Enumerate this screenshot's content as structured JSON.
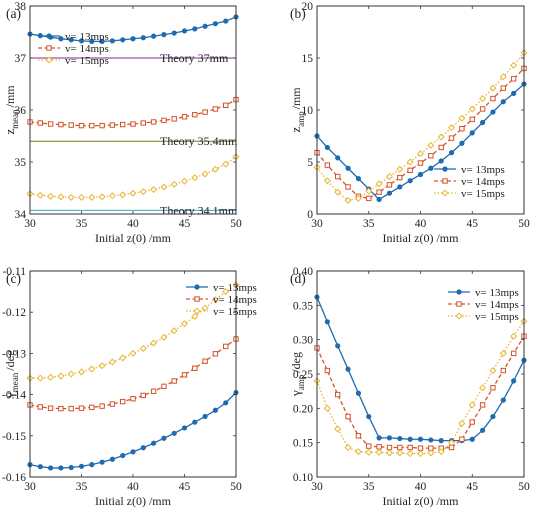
{
  "colors": {
    "v13": "#1f6bb0",
    "v14": "#d4532a",
    "v15": "#e8b530",
    "theory37": "#7b2d8e",
    "theory35_4": "#7a7a1a",
    "theory34_1": "#3aa6c0"
  },
  "chart_data": [
    {
      "type": "line",
      "panel_label": "(a)",
      "xlabel": "Initial z(0)  /mm",
      "ylabel": "z",
      "ylabel_sub": "mean",
      "ylabel_unit": "/mm",
      "xlim": [
        30,
        50
      ],
      "ylim": [
        34,
        38
      ],
      "xticks": [
        30,
        35,
        40,
        45,
        50
      ],
      "yticks": [
        34,
        35,
        36,
        37,
        38
      ],
      "legend_position": "top-left",
      "x": [
        30,
        31,
        32,
        33,
        34,
        35,
        36,
        37,
        38,
        39,
        40,
        41,
        42,
        43,
        44,
        45,
        46,
        47,
        48,
        49,
        50
      ],
      "series": [
        {
          "name": "v= 13mps",
          "marker": "dot",
          "dash": "solid",
          "color_key": "v13",
          "values": [
            37.46,
            37.43,
            37.4,
            37.37,
            37.35,
            37.33,
            37.32,
            37.32,
            37.33,
            37.35,
            37.37,
            37.39,
            37.42,
            37.45,
            37.48,
            37.52,
            37.56,
            37.61,
            37.66,
            37.71,
            37.79
          ]
        },
        {
          "name": "v= 14mps",
          "marker": "square",
          "dash": "dashed",
          "color_key": "v14",
          "values": [
            35.77,
            35.75,
            35.73,
            35.72,
            35.71,
            35.7,
            35.7,
            35.7,
            35.71,
            35.72,
            35.73,
            35.75,
            35.77,
            35.8,
            35.83,
            35.87,
            35.91,
            35.96,
            36.02,
            36.09,
            36.2
          ]
        },
        {
          "name": "v= 15mps",
          "marker": "diamond",
          "dash": "dotted",
          "color_key": "v15",
          "values": [
            34.39,
            34.36,
            34.34,
            34.33,
            34.32,
            34.32,
            34.32,
            34.33,
            34.35,
            34.37,
            34.4,
            34.43,
            34.47,
            34.52,
            34.57,
            34.63,
            34.7,
            34.77,
            34.86,
            34.96,
            35.1
          ]
        }
      ],
      "reference_lines": [
        {
          "label": "Theory 37mm",
          "y": 37.0,
          "color_key": "theory37"
        },
        {
          "label": "Theory 35.4mm",
          "y": 35.4,
          "color_key": "theory35_4"
        },
        {
          "label": "Theory 34.1mm",
          "y": 34.07,
          "color_key": "theory34_1"
        }
      ]
    },
    {
      "type": "line",
      "panel_label": "(b)",
      "xlabel": "Initial z(0)  /mm",
      "ylabel": "z",
      "ylabel_sub": "amp",
      "ylabel_unit": "/mm",
      "xlim": [
        30,
        50
      ],
      "ylim": [
        0,
        20
      ],
      "xticks": [
        30,
        35,
        40,
        45,
        50
      ],
      "yticks": [
        0,
        5,
        10,
        15,
        20
      ],
      "legend_position": "bottom-right",
      "x": [
        30,
        31,
        32,
        33,
        34,
        35,
        36,
        37,
        38,
        39,
        40,
        41,
        42,
        43,
        44,
        45,
        46,
        47,
        48,
        49,
        50
      ],
      "series": [
        {
          "name": "v= 13mps",
          "marker": "dot",
          "dash": "solid",
          "color_key": "v13",
          "values": [
            7.5,
            6.4,
            5.4,
            4.4,
            3.4,
            2.4,
            1.4,
            2.0,
            2.6,
            3.2,
            3.8,
            4.4,
            5.1,
            5.9,
            6.8,
            7.8,
            8.8,
            9.8,
            10.8,
            11.6,
            12.5
          ]
        },
        {
          "name": "v= 14mps",
          "marker": "square",
          "dash": "dashed",
          "color_key": "v14",
          "values": [
            5.9,
            4.7,
            3.6,
            2.6,
            1.7,
            1.5,
            2.1,
            2.8,
            3.5,
            4.2,
            4.9,
            5.6,
            6.4,
            7.3,
            8.2,
            9.1,
            10.1,
            11.1,
            12.1,
            13.0,
            14.0
          ]
        },
        {
          "name": "v= 15mps",
          "marker": "diamond",
          "dash": "dotted",
          "color_key": "v15",
          "values": [
            4.5,
            3.2,
            2.1,
            1.3,
            1.5,
            2.2,
            2.9,
            3.6,
            4.3,
            5.0,
            5.8,
            6.6,
            7.4,
            8.3,
            9.2,
            10.1,
            11.1,
            12.1,
            13.2,
            14.3,
            15.5
          ]
        }
      ]
    },
    {
      "type": "line",
      "panel_label": "(c)",
      "xlabel": "Initial z(0)  /mm",
      "ylabel": "γ",
      "ylabel_sub": "mean",
      "ylabel_unit": "/deg",
      "xlim": [
        30,
        50
      ],
      "ylim": [
        -0.16,
        -0.11
      ],
      "xticks": [
        30,
        35,
        40,
        45,
        50
      ],
      "yticks": [
        -0.16,
        -0.15,
        -0.14,
        -0.13,
        -0.12,
        -0.11
      ],
      "legend_position": "top-right",
      "x": [
        30,
        31,
        32,
        33,
        34,
        35,
        36,
        37,
        38,
        39,
        40,
        41,
        42,
        43,
        44,
        45,
        46,
        47,
        48,
        49,
        50
      ],
      "series": [
        {
          "name": "v= 13mps",
          "marker": "dot",
          "dash": "solid",
          "color_key": "v13",
          "values": [
            -0.157,
            -0.1575,
            -0.1578,
            -0.1578,
            -0.1577,
            -0.1574,
            -0.157,
            -0.1564,
            -0.1557,
            -0.1548,
            -0.1539,
            -0.1529,
            -0.1518,
            -0.1506,
            -0.1494,
            -0.1481,
            -0.1467,
            -0.1453,
            -0.1438,
            -0.142,
            -0.1395
          ]
        },
        {
          "name": "v= 14mps",
          "marker": "square",
          "dash": "dashed",
          "color_key": "v14",
          "values": [
            -0.1425,
            -0.143,
            -0.1433,
            -0.1434,
            -0.1434,
            -0.1433,
            -0.1431,
            -0.1428,
            -0.1423,
            -0.1417,
            -0.141,
            -0.1402,
            -0.1392,
            -0.138,
            -0.1367,
            -0.1352,
            -0.1336,
            -0.1319,
            -0.1301,
            -0.1283,
            -0.1265
          ]
        },
        {
          "name": "v= 15mps",
          "marker": "diamond",
          "dash": "dotted",
          "color_key": "v15",
          "values": [
            -0.136,
            -0.136,
            -0.1358,
            -0.1355,
            -0.135,
            -0.1345,
            -0.1338,
            -0.133,
            -0.1321,
            -0.1311,
            -0.13,
            -0.1288,
            -0.1275,
            -0.1261,
            -0.1245,
            -0.1228,
            -0.121,
            -0.119,
            -0.117,
            -0.115,
            -0.1133
          ]
        }
      ]
    },
    {
      "type": "line",
      "panel_label": "(d)",
      "xlabel": "Initial z(0)  /mm",
      "ylabel": "γ",
      "ylabel_sub": "amp",
      "ylabel_unit": "/deg",
      "xlim": [
        30,
        50
      ],
      "ylim": [
        0.1,
        0.4
      ],
      "xticks": [
        30,
        35,
        40,
        45,
        50
      ],
      "yticks": [
        0.1,
        0.15,
        0.2,
        0.25,
        0.3,
        0.35,
        0.4
      ],
      "legend_position": "top-right",
      "x": [
        30,
        31,
        32,
        33,
        34,
        35,
        36,
        37,
        38,
        39,
        40,
        41,
        42,
        43,
        44,
        45,
        46,
        47,
        48,
        49,
        50
      ],
      "series": [
        {
          "name": "v= 13mps",
          "marker": "dot",
          "dash": "solid",
          "color_key": "v13",
          "values": [
            0.362,
            0.326,
            0.291,
            0.257,
            0.222,
            0.188,
            0.157,
            0.157,
            0.156,
            0.155,
            0.155,
            0.154,
            0.153,
            0.153,
            0.153,
            0.155,
            0.168,
            0.188,
            0.212,
            0.24,
            0.27
          ]
        },
        {
          "name": "v= 14mps",
          "marker": "square",
          "dash": "dashed",
          "color_key": "v14",
          "values": [
            0.288,
            0.255,
            0.22,
            0.188,
            0.16,
            0.145,
            0.144,
            0.143,
            0.143,
            0.143,
            0.142,
            0.142,
            0.142,
            0.143,
            0.155,
            0.18,
            0.205,
            0.23,
            0.255,
            0.28,
            0.305
          ]
        },
        {
          "name": "v= 15mps",
          "marker": "diamond",
          "dash": "dotted",
          "color_key": "v15",
          "values": [
            0.24,
            0.2,
            0.17,
            0.143,
            0.137,
            0.136,
            0.136,
            0.135,
            0.135,
            0.134,
            0.134,
            0.135,
            0.137,
            0.15,
            0.178,
            0.205,
            0.23,
            0.255,
            0.28,
            0.305,
            0.327
          ]
        }
      ]
    }
  ]
}
